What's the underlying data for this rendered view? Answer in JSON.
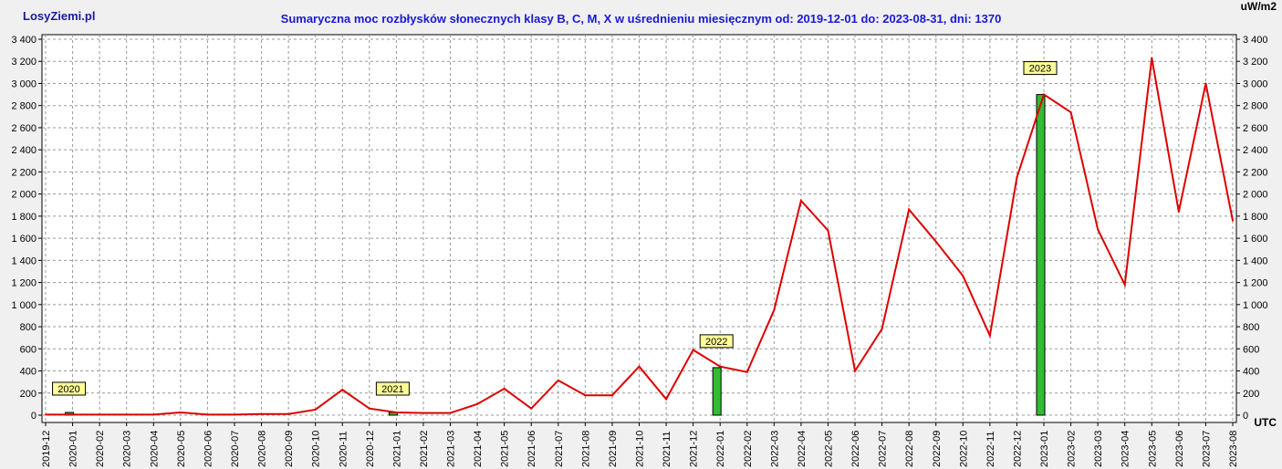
{
  "site": {
    "brand": "LosyZiemi.pl"
  },
  "colors": {
    "line": "#dd0000",
    "bar": "#33bb33",
    "grid": "#999999",
    "label_bg": "#ffff99",
    "title": "#1a1ad0"
  },
  "chart_data": {
    "type": "line",
    "title": "Sumaryczna moc rozbłysków słonecznych klasy B, C, M, X w uśrednieniu miesięcznym od: 2019-12-01 do: 2023-08-31, dni: 1370",
    "unit": "uW/m2",
    "x_unit": "UTC",
    "ylim": [
      0,
      3400
    ],
    "yticks": [
      0,
      200,
      400,
      600,
      800,
      1000,
      1200,
      1400,
      1600,
      1800,
      2000,
      2200,
      2400,
      2600,
      2800,
      3000,
      3200,
      3400
    ],
    "grid": true,
    "categories": [
      "2019-12",
      "2020-01",
      "2020-02",
      "2020-03",
      "2020-04",
      "2020-05",
      "2020-06",
      "2020-07",
      "2020-08",
      "2020-09",
      "2020-10",
      "2020-11",
      "2020-12",
      "2021-01",
      "2021-02",
      "2021-03",
      "2021-04",
      "2021-05",
      "2021-06",
      "2021-07",
      "2021-08",
      "2021-09",
      "2021-10",
      "2021-11",
      "2021-12",
      "2022-01",
      "2022-02",
      "2022-03",
      "2022-04",
      "2022-05",
      "2022-06",
      "2022-07",
      "2022-08",
      "2022-09",
      "2022-10",
      "2022-11",
      "2022-12",
      "2023-01",
      "2023-02",
      "2023-03",
      "2023-04",
      "2023-05",
      "2023-06",
      "2023-07",
      "2023-08"
    ],
    "values": [
      5,
      5,
      5,
      5,
      5,
      25,
      5,
      5,
      10,
      10,
      50,
      230,
      60,
      25,
      20,
      20,
      100,
      240,
      60,
      315,
      180,
      180,
      440,
      145,
      590,
      440,
      390,
      950,
      1940,
      1670,
      400,
      780,
      1860,
      1570,
      1260,
      720,
      2150,
      2900,
      2740,
      1680,
      1180,
      3230,
      1840,
      3000,
      1760
    ],
    "year_markers": [
      {
        "label": "2020",
        "index": 1,
        "value": 0
      },
      {
        "label": "2021",
        "index": 13,
        "value": 20
      },
      {
        "label": "2022",
        "index": 25,
        "value": 430
      },
      {
        "label": "2023",
        "index": 37,
        "value": 2900
      }
    ]
  }
}
